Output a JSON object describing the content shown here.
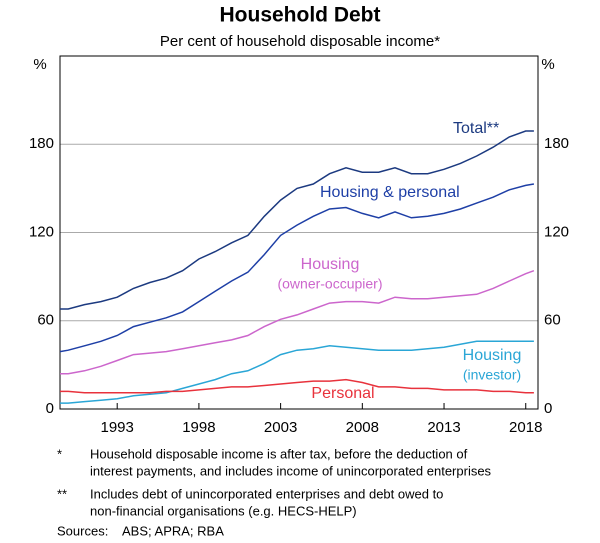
{
  "chart_data": {
    "type": "line",
    "title": "Household Debt",
    "subtitle": "Per cent of household disposable income*",
    "y_unit": "%",
    "x": [
      1989.5,
      1990,
      1991,
      1992,
      1993,
      1994,
      1995,
      1996,
      1997,
      1998,
      1999,
      2000,
      2001,
      2002,
      2003,
      2004,
      2005,
      2006,
      2007,
      2008,
      2009,
      2010,
      2011,
      2012,
      2013,
      2014,
      2015,
      2016,
      2017,
      2018,
      2018.5
    ],
    "series": [
      {
        "name": "Total**",
        "color": "#1c3a80",
        "values": [
          68,
          68,
          71,
          73,
          76,
          82,
          86,
          89,
          94,
          102,
          107,
          113,
          118,
          131,
          142,
          150,
          153,
          160,
          164,
          161,
          161,
          164,
          160,
          160,
          163,
          167,
          172,
          178,
          185,
          189,
          189
        ]
      },
      {
        "name": "Housing & personal",
        "color": "#1e3fa6",
        "values": [
          39,
          40,
          43,
          46,
          50,
          56,
          59,
          62,
          66,
          73,
          80,
          87,
          93,
          105,
          118,
          125,
          131,
          136,
          137,
          133,
          130,
          134,
          130,
          131,
          133,
          136,
          140,
          144,
          149,
          152,
          153
        ]
      },
      {
        "name": "Housing",
        "subname": "(owner-occupier)",
        "color": "#cc66cc",
        "values": [
          24,
          24,
          26,
          29,
          33,
          37,
          38,
          39,
          41,
          43,
          45,
          47,
          50,
          56,
          61,
          64,
          68,
          72,
          73,
          73,
          72,
          76,
          75,
          75,
          76,
          77,
          78,
          82,
          87,
          92,
          94
        ]
      },
      {
        "name": "Housing",
        "subname": "(investor)",
        "color": "#2aa6d6",
        "values": [
          4,
          4,
          5,
          6,
          7,
          9,
          10,
          11,
          14,
          17,
          20,
          24,
          26,
          31,
          37,
          40,
          41,
          43,
          42,
          41,
          40,
          40,
          40,
          41,
          42,
          44,
          46,
          46,
          46,
          46,
          46
        ]
      },
      {
        "name": "Personal",
        "color": "#e8323c",
        "values": [
          12,
          12,
          11,
          11,
          11,
          11,
          11,
          12,
          12,
          13,
          14,
          15,
          15,
          16,
          17,
          18,
          19,
          19,
          20,
          18,
          15,
          15,
          14,
          14,
          13,
          13,
          13,
          12,
          12,
          11,
          11
        ]
      }
    ],
    "xlim": [
      1989.5,
      2018.75
    ],
    "xticks": [
      1993,
      1998,
      2003,
      2008,
      2013,
      2018
    ],
    "ylim": [
      0,
      240
    ],
    "yticks": [
      0,
      60,
      120,
      180
    ],
    "grid": true,
    "notes": [
      {
        "marker": "*",
        "text": [
          "Household disposable income is after tax, before the deduction of",
          "interest payments, and includes income of unincorporated enterprises"
        ]
      },
      {
        "marker": "**",
        "text": [
          "Includes debt of unincorporated enterprises and debt owed to",
          "non-financial organisations (e.g. HECS-HELP)"
        ]
      }
    ],
    "sources_label": "Sources:",
    "sources": "ABS; APRA; RBA"
  }
}
